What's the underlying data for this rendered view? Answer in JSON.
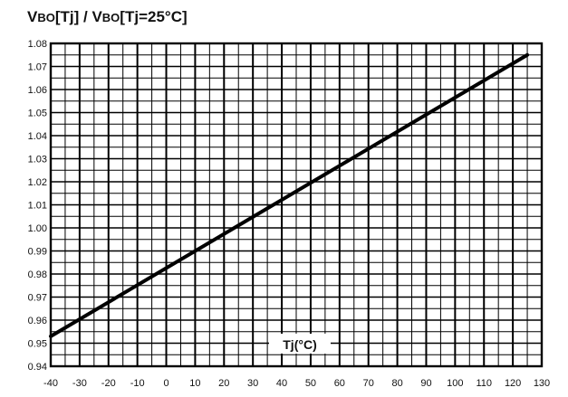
{
  "chart_data": {
    "type": "line",
    "title": "",
    "ylabel": {
      "v1": "V",
      "s1": "BO",
      "m1": "[Tj] / V",
      "s2": "BO",
      "m2": "[Tj=25°C]"
    },
    "xlabel": "Tj(°C)",
    "xlim": [
      -40,
      130
    ],
    "ylim": [
      0.94,
      1.08
    ],
    "x_ticks": [
      "-40",
      "-30",
      "-20",
      "-10",
      "0",
      "10",
      "20",
      "30",
      "40",
      "50",
      "60",
      "70",
      "80",
      "90",
      "100",
      "110",
      "120",
      "130"
    ],
    "y_ticks": [
      "0.94",
      "0.95",
      "0.96",
      "0.97",
      "0.98",
      "0.99",
      "1.00",
      "1.01",
      "1.02",
      "1.03",
      "1.04",
      "1.05",
      "1.06",
      "1.07",
      "1.08"
    ],
    "grid": true,
    "series": [
      {
        "x": [
          -40,
          125
        ],
        "y": [
          0.953,
          1.075
        ]
      }
    ]
  }
}
